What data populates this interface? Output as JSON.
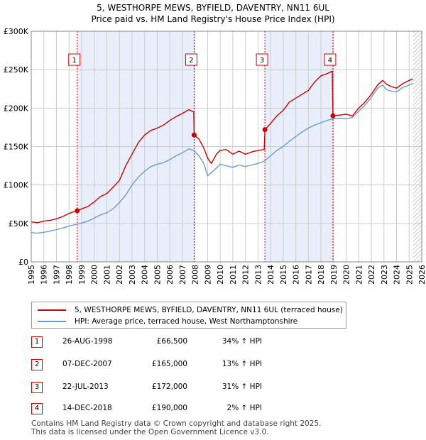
{
  "title_line1": "5, WESTHORPE MEWS, BYFIELD, DAVENTRY, NN11 6UL",
  "title_line2": "Price paid vs. HM Land Registry's House Price Index (HPI)",
  "colors": {
    "price_line": "#cc0000",
    "hpi_line": "#6b9bd0",
    "shade": "#e8eefa",
    "grid": "#cccccc",
    "marker_border": "#cc0000"
  },
  "legend": {
    "price_label": "5, WESTHORPE MEWS, BYFIELD, DAVENTRY, NN11 6UL (terraced house)",
    "hpi_label": "HPI: Average price, terraced house, West Northamptonshire"
  },
  "transactions": [
    {
      "num": "1",
      "date": "26-AUG-1998",
      "price": "£66,500",
      "hpi": "34% ↑ HPI"
    },
    {
      "num": "2",
      "date": "07-DEC-2007",
      "price": "£165,000",
      "hpi": "13% ↑ HPI"
    },
    {
      "num": "3",
      "date": "22-JUL-2013",
      "price": "£172,000",
      "hpi": "31% ↑ HPI"
    },
    {
      "num": "4",
      "date": "14-DEC-2018",
      "price": "£190,000",
      "hpi": "2% ↑ HPI"
    }
  ],
  "footer_line1": "Contains HM Land Registry data © Crown copyright and database right 2025.",
  "footer_line2": "This data is licensed under the Open Government Licence v3.0.",
  "chart_data": {
    "type": "line",
    "xlim": [
      1995,
      2026
    ],
    "ylim": [
      0,
      300000
    ],
    "x_ticks": [
      "1995",
      "1996",
      "1997",
      "1998",
      "1999",
      "2000",
      "2001",
      "2002",
      "2003",
      "2004",
      "2005",
      "2006",
      "2007",
      "2008",
      "2009",
      "2010",
      "2011",
      "2012",
      "2013",
      "2014",
      "2015",
      "2016",
      "2017",
      "2018",
      "2019",
      "2020",
      "2021",
      "2022",
      "2023",
      "2024",
      "2025",
      "2026"
    ],
    "y_ticks": [
      {
        "value": 0,
        "label": "£0"
      },
      {
        "value": 50000,
        "label": "£50K"
      },
      {
        "value": 100000,
        "label": "£100K"
      },
      {
        "value": 150000,
        "label": "£150K"
      },
      {
        "value": 200000,
        "label": "£200K"
      },
      {
        "value": 250000,
        "label": "£250K"
      },
      {
        "value": 300000,
        "label": "£300K"
      }
    ],
    "shaded_periods": [
      [
        1998.65,
        2007.93
      ],
      [
        2013.55,
        2018.95
      ]
    ],
    "hatched_after": 2025.3,
    "sales": [
      {
        "label": "1",
        "x": 1998.65,
        "y": 66500
      },
      {
        "label": "2",
        "x": 2007.93,
        "y": 165000
      },
      {
        "label": "3",
        "x": 2013.55,
        "y": 172000
      },
      {
        "label": "4",
        "x": 2018.95,
        "y": 190000
      }
    ],
    "series": [
      {
        "name": "5, WESTHORPE MEWS, BYFIELD, DAVENTRY, NN11 6UL (terraced house)",
        "x": [
          1995.0,
          1995.5,
          1996.0,
          1996.5,
          1997.0,
          1997.5,
          1998.0,
          1998.5,
          1998.65,
          1999.0,
          1999.5,
          2000.0,
          2000.5,
          2001.0,
          2001.5,
          2002.0,
          2002.5,
          2003.0,
          2003.5,
          2004.0,
          2004.5,
          2005.0,
          2005.5,
          2006.0,
          2006.5,
          2007.0,
          2007.5,
          2007.9,
          2007.93,
          2008.3,
          2008.7,
          2009.0,
          2009.3,
          2009.7,
          2010.0,
          2010.5,
          2011.0,
          2011.5,
          2012.0,
          2012.5,
          2013.0,
          2013.5,
          2013.55,
          2014.0,
          2014.5,
          2015.0,
          2015.5,
          2016.0,
          2016.5,
          2017.0,
          2017.5,
          2018.0,
          2018.5,
          2018.9,
          2018.95,
          2019.5,
          2020.0,
          2020.5,
          2021.0,
          2021.5,
          2022.0,
          2022.5,
          2022.9,
          2023.2,
          2023.6,
          2024.0,
          2024.5,
          2025.0,
          2025.3
        ],
        "y": [
          52000,
          51000,
          53000,
          54000,
          56000,
          59000,
          63000,
          66000,
          66500,
          69000,
          72000,
          78000,
          85000,
          89000,
          97000,
          106000,
          125000,
          140000,
          155000,
          165000,
          171000,
          174000,
          178000,
          184000,
          189000,
          193000,
          198000,
          195000,
          165000,
          160000,
          148000,
          135000,
          128000,
          140000,
          145000,
          146000,
          140000,
          144000,
          140000,
          143000,
          145000,
          146000,
          172000,
          180000,
          190000,
          197000,
          208000,
          213000,
          218000,
          223000,
          234000,
          242000,
          245000,
          248000,
          190000,
          191000,
          192000,
          190000,
          200000,
          208000,
          218000,
          230000,
          236000,
          231000,
          228000,
          226000,
          232000,
          236000,
          238000
        ]
      },
      {
        "name": "HPI: Average price, terraced house, West Northamptonshire",
        "x": [
          1995.0,
          1995.5,
          1996.0,
          1996.5,
          1997.0,
          1997.5,
          1998.0,
          1998.5,
          1999.0,
          1999.5,
          2000.0,
          2000.5,
          2001.0,
          2001.5,
          2002.0,
          2002.5,
          2003.0,
          2003.5,
          2004.0,
          2004.5,
          2005.0,
          2005.5,
          2006.0,
          2006.5,
          2007.0,
          2007.5,
          2007.9,
          2008.3,
          2008.7,
          2009.0,
          2009.3,
          2009.7,
          2010.0,
          2010.5,
          2011.0,
          2011.5,
          2012.0,
          2012.5,
          2013.0,
          2013.5,
          2014.0,
          2014.5,
          2015.0,
          2015.5,
          2016.0,
          2016.5,
          2017.0,
          2017.5,
          2018.0,
          2018.5,
          2018.9,
          2019.5,
          2020.0,
          2020.5,
          2021.0,
          2021.5,
          2022.0,
          2022.5,
          2022.9,
          2023.2,
          2023.6,
          2024.0,
          2024.5,
          2025.0,
          2025.3
        ],
        "y": [
          38000,
          37500,
          38500,
          40000,
          42000,
          44000,
          46500,
          48500,
          50500,
          53000,
          57000,
          61000,
          64000,
          69000,
          77000,
          87000,
          100000,
          110000,
          118000,
          124000,
          127000,
          129000,
          133000,
          138000,
          142000,
          147000,
          145000,
          138000,
          128000,
          112000,
          116000,
          122000,
          127000,
          125000,
          123000,
          126000,
          124000,
          126000,
          128000,
          131000,
          138000,
          145000,
          150000,
          157000,
          163000,
          169000,
          174000,
          178000,
          181000,
          184000,
          186000,
          187000,
          186000,
          188000,
          196000,
          204000,
          214000,
          226000,
          230000,
          224000,
          222000,
          221000,
          227000,
          230000,
          232000
        ]
      }
    ]
  }
}
